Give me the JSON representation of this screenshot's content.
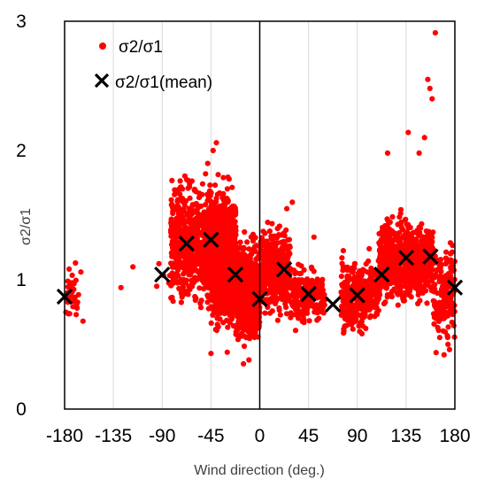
{
  "chart_data": {
    "type": "scatter",
    "title": "",
    "xlabel": "Wind direction (deg.)",
    "ylabel": "σ2/σ1",
    "xlim": [
      -180,
      180
    ],
    "ylim": [
      0,
      3
    ],
    "xticks": [
      -180,
      -135,
      -90,
      -45,
      0,
      45,
      90,
      135,
      180
    ],
    "xtick_labels": [
      "-180",
      "-135",
      "-90",
      "-45",
      "0",
      "45",
      "90",
      "135",
      "180"
    ],
    "yticks": [
      0,
      1,
      2,
      3
    ],
    "ytick_labels": [
      "0",
      "1",
      "2",
      "3"
    ],
    "grid": "vertical",
    "legend_position": "top-left",
    "colors": {
      "points": "#ff0000",
      "mean": "#000000"
    },
    "series": [
      {
        "name": "σ2/σ1",
        "marker": "dot",
        "clusters": [
          {
            "x_range": [
              -180,
              -167
            ],
            "y_center": 0.88,
            "y_spread": 0.09,
            "count": 40
          },
          {
            "x_range": [
              -98,
              -82
            ],
            "y_center": 1.05,
            "y_spread": 0.05,
            "count": 4
          },
          {
            "x_range": [
              -82,
              -45
            ],
            "y_center": 1.28,
            "y_spread": 0.2,
            "count": 700
          },
          {
            "x_range": [
              -45,
              -22
            ],
            "y_center": 1.18,
            "y_spread": 0.22,
            "count": 1100
          },
          {
            "x_range": [
              -22,
              0
            ],
            "y_center": 0.9,
            "y_spread": 0.16,
            "count": 900
          },
          {
            "x_range": [
              0,
              28
            ],
            "y_center": 1.08,
            "y_spread": 0.15,
            "count": 350
          },
          {
            "x_range": [
              28,
              60
            ],
            "y_center": 0.88,
            "y_spread": 0.1,
            "count": 220
          },
          {
            "x_range": [
              75,
              110
            ],
            "y_center": 0.88,
            "y_spread": 0.12,
            "count": 350
          },
          {
            "x_range": [
              110,
              160
            ],
            "y_center": 1.15,
            "y_spread": 0.14,
            "count": 800
          },
          {
            "x_range": [
              160,
              180
            ],
            "y_center": 0.9,
            "y_spread": 0.18,
            "count": 180
          }
        ],
        "outliers": [
          [
            -170,
            1.13
          ],
          [
            -163,
            0.68
          ],
          [
            -165,
            1.06
          ],
          [
            -128,
            0.94
          ],
          [
            -117,
            1.1
          ],
          [
            -95,
            0.95
          ],
          [
            -40,
            2.06
          ],
          [
            -43,
            2.0
          ],
          [
            -48,
            1.9
          ],
          [
            -50,
            1.82
          ],
          [
            -60,
            1.7
          ],
          [
            -45,
            0.43
          ],
          [
            -30,
            0.44
          ],
          [
            -15,
            0.35
          ],
          [
            -10,
            0.38
          ],
          [
            137,
            2.14
          ],
          [
            147,
            1.98
          ],
          [
            152,
            2.1
          ],
          [
            155,
            2.55
          ],
          [
            157,
            2.48
          ],
          [
            159,
            2.4
          ],
          [
            162,
            2.91
          ],
          [
            118,
            1.98
          ],
          [
            170,
            0.42
          ],
          [
            175,
            0.46
          ],
          [
            50,
            1.33
          ],
          [
            30,
            1.6
          ],
          [
            25,
            1.55
          ]
        ]
      },
      {
        "name": "σ2/σ1(mean)",
        "marker": "x",
        "x": [
          -180,
          -90,
          -67.5,
          -45,
          -22.5,
          0,
          22.5,
          45,
          67.5,
          90,
          112.5,
          135,
          157.5,
          180
        ],
        "y": [
          0.87,
          1.04,
          1.28,
          1.31,
          1.04,
          0.85,
          1.08,
          0.89,
          0.81,
          0.88,
          1.04,
          1.17,
          1.18,
          0.94
        ]
      }
    ]
  }
}
